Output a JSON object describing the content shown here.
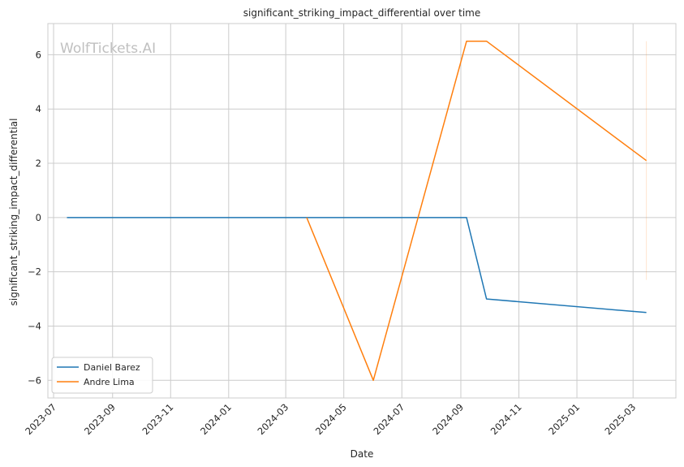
{
  "chart_data": {
    "type": "line",
    "title": "significant_striking_impact_differential over time",
    "xlabel": "Date",
    "ylabel": "significant_striking_impact_differential",
    "watermark": "WolfTickets.AI",
    "x_ticks": [
      "2023-07",
      "2023-09",
      "2023-11",
      "2024-01",
      "2024-03",
      "2024-05",
      "2024-07",
      "2024-09",
      "2024-11",
      "2025-01",
      "2025-03"
    ],
    "y_ticks": [
      -6,
      -4,
      -2,
      0,
      2,
      4,
      6
    ],
    "xlim": [
      "2023-06-25",
      "2025-04-15"
    ],
    "ylim": [
      -6.65,
      7.15
    ],
    "grid": true,
    "legend_position": "lower-left",
    "series": [
      {
        "name": "Daniel Barez",
        "color": "#1f77b4",
        "points": [
          {
            "x": "2023-07-15",
            "y": 0
          },
          {
            "x": "2024-09-07",
            "y": 0
          },
          {
            "x": "2024-09-28",
            "y": -3
          },
          {
            "x": "2025-03-15",
            "y": -3.5
          }
        ]
      },
      {
        "name": "Andre Lima",
        "color": "#ff7f0e",
        "points": [
          {
            "x": "2024-03-23",
            "y": 0
          },
          {
            "x": "2024-06-01",
            "y": -6
          },
          {
            "x": "2024-09-07",
            "y": 6.5
          },
          {
            "x": "2024-09-28",
            "y": 6.5
          },
          {
            "x": "2025-03-15",
            "y": 2.1
          }
        ]
      }
    ],
    "faint_band": {
      "x": "2025-03-15",
      "y_range": [
        -2.3,
        6.5
      ],
      "color": "#ff7f0e"
    }
  }
}
